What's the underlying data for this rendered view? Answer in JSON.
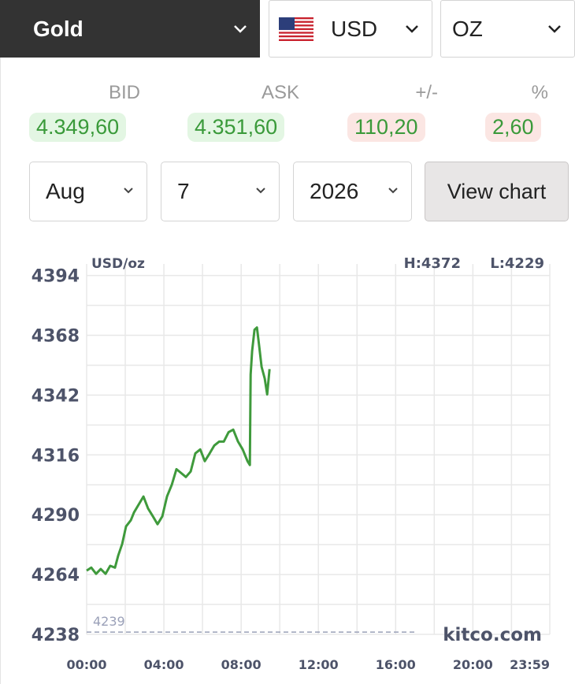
{
  "selectors": {
    "metal": "Gold",
    "currency": "USD",
    "unit": "OZ"
  },
  "quote": {
    "labels": [
      "BID",
      "ASK",
      "+/-",
      "%"
    ],
    "values": [
      "4.349,60",
      "4.351,60",
      "110,20",
      "2,60"
    ]
  },
  "date": {
    "month": "Aug",
    "day": "7",
    "year": "2026"
  },
  "button": "View chart",
  "chart_data": {
    "type": "line",
    "unit_label": "USD/oz",
    "high_label": "H:4372",
    "low_label": "L:4229",
    "watermark": "kitco.com",
    "x": [
      0,
      0.24,
      0.49,
      0.73,
      0.98,
      1.22,
      1.47,
      1.63,
      1.84,
      2.04,
      2.29,
      2.45,
      2.69,
      2.94,
      3.18,
      3.43,
      3.67,
      3.92,
      4.16,
      4.41,
      4.65,
      4.9,
      5.14,
      5.39,
      5.63,
      5.88,
      6.12,
      6.37,
      6.61,
      6.86,
      7.1,
      7.35,
      7.59,
      7.84,
      8.08,
      8.33,
      8.45,
      8.49,
      8.57,
      8.69,
      8.82,
      8.94,
      9.06,
      9.22,
      9.35,
      9.47
    ],
    "series": [
      {
        "name": "Gold",
        "color": "#3f9a3c",
        "values": [
          4265.7,
          4267,
          4264.3,
          4266.4,
          4264.3,
          4267.8,
          4267,
          4272.2,
          4277.3,
          4284.9,
          4287.6,
          4291,
          4294.4,
          4297.9,
          4292.7,
          4289.3,
          4285.9,
          4289.3,
          4297.9,
          4303,
          4309.8,
          4308.1,
          4306.4,
          4308.8,
          4316.7,
          4318.4,
          4313.3,
          4316.7,
          4320.1,
          4321.8,
          4321.8,
          4325.9,
          4327,
          4321.8,
          4318.4,
          4313.3,
          4311.6,
          4350.9,
          4361.2,
          4370.4,
          4371.4,
          4362.9,
          4354.3,
          4349.2,
          4342.3,
          4353.3
        ]
      }
    ],
    "xlim": [
      0,
      23.983
    ],
    "ylim": [
      4238,
      4399
    ],
    "xticks": [
      {
        "value": 0,
        "label": "00:00"
      },
      {
        "value": 4,
        "label": "04:00"
      },
      {
        "value": 8,
        "label": "08:00"
      },
      {
        "value": 12,
        "label": "12:00"
      },
      {
        "value": 16,
        "label": "16:00"
      },
      {
        "value": 20,
        "label": "20:00"
      },
      {
        "value": 23.983,
        "label": "23:59"
      }
    ],
    "yticks": [
      4238,
      4264,
      4290,
      4316,
      4342,
      4368,
      4394
    ],
    "xgrid": [
      2,
      6,
      10,
      14,
      18,
      22
    ],
    "ygrid": [
      4251,
      4277,
      4303,
      4329,
      4355,
      4381
    ],
    "grid": true,
    "ref_line": {
      "value": 4239,
      "x_end": 17.1,
      "color": "#9aa0b8"
    }
  }
}
